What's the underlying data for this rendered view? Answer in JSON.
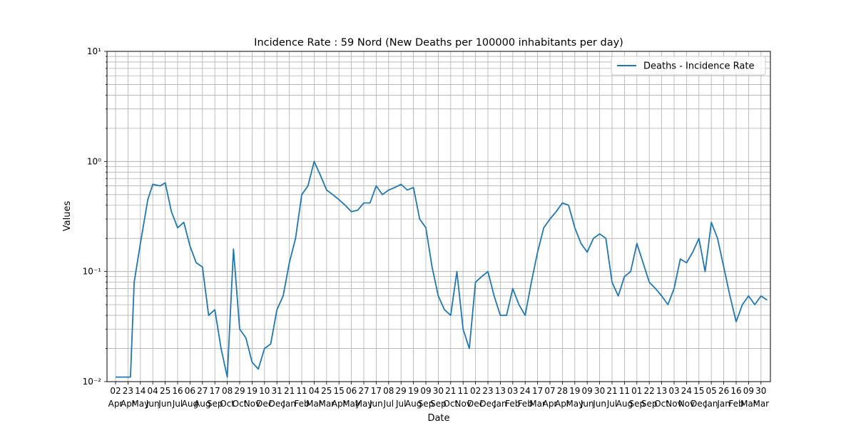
{
  "chart_data": {
    "type": "line",
    "title": "Incidence Rate : 59 Nord (New Deaths per 100000 inhabitants per day)",
    "xlabel": "Date",
    "ylabel": "Values",
    "yscale": "log",
    "ylim": [
      0.01,
      10
    ],
    "y_ticks": [
      "10⁻²",
      "10⁻¹",
      "10⁰",
      "10¹"
    ],
    "x_ticks": [
      {
        "day": "02",
        "month": "Apr"
      },
      {
        "day": "23",
        "month": "Apr"
      },
      {
        "day": "14",
        "month": "May"
      },
      {
        "day": "04",
        "month": "Jun"
      },
      {
        "day": "25",
        "month": "Jun"
      },
      {
        "day": "16",
        "month": "Jul"
      },
      {
        "day": "06",
        "month": "Aug"
      },
      {
        "day": "27",
        "month": "Aug"
      },
      {
        "day": "17",
        "month": "Sep"
      },
      {
        "day": "08",
        "month": "Oct"
      },
      {
        "day": "29",
        "month": "Oct"
      },
      {
        "day": "19",
        "month": "Nov"
      },
      {
        "day": "10",
        "month": "Dec"
      },
      {
        "day": "31",
        "month": "Dec"
      },
      {
        "day": "21",
        "month": "Jan"
      },
      {
        "day": "11",
        "month": "Feb"
      },
      {
        "day": "04",
        "month": "Mar"
      },
      {
        "day": "25",
        "month": "Mar"
      },
      {
        "day": "15",
        "month": "Apr"
      },
      {
        "day": "06",
        "month": "May"
      },
      {
        "day": "27",
        "month": "May"
      },
      {
        "day": "17",
        "month": "Jun"
      },
      {
        "day": "08",
        "month": "Jul"
      },
      {
        "day": "29",
        "month": "Jul"
      },
      {
        "day": "19",
        "month": "Aug"
      },
      {
        "day": "09",
        "month": "Sep"
      },
      {
        "day": "30",
        "month": "Sep"
      },
      {
        "day": "21",
        "month": "Oct"
      },
      {
        "day": "11",
        "month": "Nov"
      },
      {
        "day": "02",
        "month": "Dec"
      },
      {
        "day": "23",
        "month": "Dec"
      },
      {
        "day": "13",
        "month": "Jan"
      },
      {
        "day": "03",
        "month": "Feb"
      },
      {
        "day": "24",
        "month": "Feb"
      },
      {
        "day": "17",
        "month": "Mar"
      },
      {
        "day": "07",
        "month": "Apr"
      },
      {
        "day": "28",
        "month": "Apr"
      },
      {
        "day": "19",
        "month": "May"
      },
      {
        "day": "09",
        "month": "Jun"
      },
      {
        "day": "30",
        "month": "Jun"
      },
      {
        "day": "21",
        "month": "Jul"
      },
      {
        "day": "11",
        "month": "Aug"
      },
      {
        "day": "01",
        "month": "Sep"
      },
      {
        "day": "22",
        "month": "Sep"
      },
      {
        "day": "13",
        "month": "Oct"
      },
      {
        "day": "03",
        "month": "Nov"
      },
      {
        "day": "24",
        "month": "Nov"
      },
      {
        "day": "15",
        "month": "Dec"
      },
      {
        "day": "05",
        "month": "Jan"
      },
      {
        "day": "26",
        "month": "Jan"
      },
      {
        "day": "16",
        "month": "Feb"
      },
      {
        "day": "09",
        "month": "Mar"
      },
      {
        "day": "30",
        "month": "Mar"
      }
    ],
    "grid": true,
    "legend": {
      "position": "top-right"
    },
    "series": [
      {
        "name": "Deaths - Incidence Rate",
        "color": "#1f77b4",
        "x_tick_positions": [
          0,
          1.2,
          1.5,
          2.0,
          2.6,
          3.0,
          3.6,
          4.0,
          4.5,
          5.0,
          5.5,
          6.0,
          6.5,
          7.0,
          7.5,
          8.0,
          8.5,
          9.0,
          9.5,
          10.0,
          10.5,
          11.0,
          11.5,
          12.0,
          12.5,
          13.0,
          13.5,
          14.0,
          14.5,
          15.0,
          15.5,
          16.0,
          16.5,
          17.0,
          17.5,
          18.0,
          18.5,
          19.0,
          19.5,
          20.0,
          20.5,
          21.0,
          21.5,
          22.0,
          22.5,
          23.0,
          23.5,
          24.0,
          24.5,
          25.0,
          25.5,
          26.0,
          26.5,
          27.0,
          27.5,
          28.0,
          28.5,
          29.0,
          29.5,
          30.0,
          30.5,
          31.0,
          31.5,
          32.0,
          32.5,
          33.0,
          33.5,
          34.0,
          34.5,
          35.0,
          35.5,
          36.0,
          36.5,
          37.0,
          37.5,
          38.0,
          38.5,
          39.0,
          39.5,
          40.0,
          40.5,
          41.0,
          41.5,
          42.0,
          42.5,
          43.0,
          43.5,
          44.0,
          44.5,
          45.0,
          45.5,
          46.0,
          46.5,
          47.0,
          47.5,
          48.0,
          48.5,
          49.0,
          49.5,
          50.0,
          50.5,
          51.0,
          51.5,
          52.0,
          52.5,
          53.0
        ],
        "values": [
          0.011,
          0.011,
          0.08,
          0.18,
          0.45,
          0.62,
          0.6,
          0.64,
          0.35,
          0.25,
          0.28,
          0.17,
          0.12,
          0.11,
          0.04,
          0.045,
          0.02,
          0.011,
          0.16,
          0.03,
          0.025,
          0.015,
          0.013,
          0.02,
          0.022,
          0.045,
          0.06,
          0.12,
          0.2,
          0.5,
          0.6,
          1.0,
          0.75,
          0.55,
          0.5,
          0.45,
          0.4,
          0.35,
          0.36,
          0.42,
          0.42,
          0.6,
          0.5,
          0.55,
          0.58,
          0.62,
          0.55,
          0.58,
          0.3,
          0.25,
          0.11,
          0.06,
          0.045,
          0.04,
          0.1,
          0.03,
          0.02,
          0.08,
          0.09,
          0.1,
          0.06,
          0.04,
          0.04,
          0.07,
          0.05,
          0.04,
          0.08,
          0.15,
          0.25,
          0.3,
          0.35,
          0.42,
          0.4,
          0.25,
          0.18,
          0.15,
          0.2,
          0.22,
          0.2,
          0.08,
          0.06,
          0.09,
          0.1,
          0.18,
          0.12,
          0.08,
          0.07,
          0.06,
          0.05,
          0.07,
          0.13,
          0.12,
          0.15,
          0.2,
          0.1,
          0.28,
          0.2,
          0.11,
          0.06,
          0.035,
          0.05,
          0.06,
          0.05,
          0.06,
          0.055
        ]
      }
    ]
  }
}
